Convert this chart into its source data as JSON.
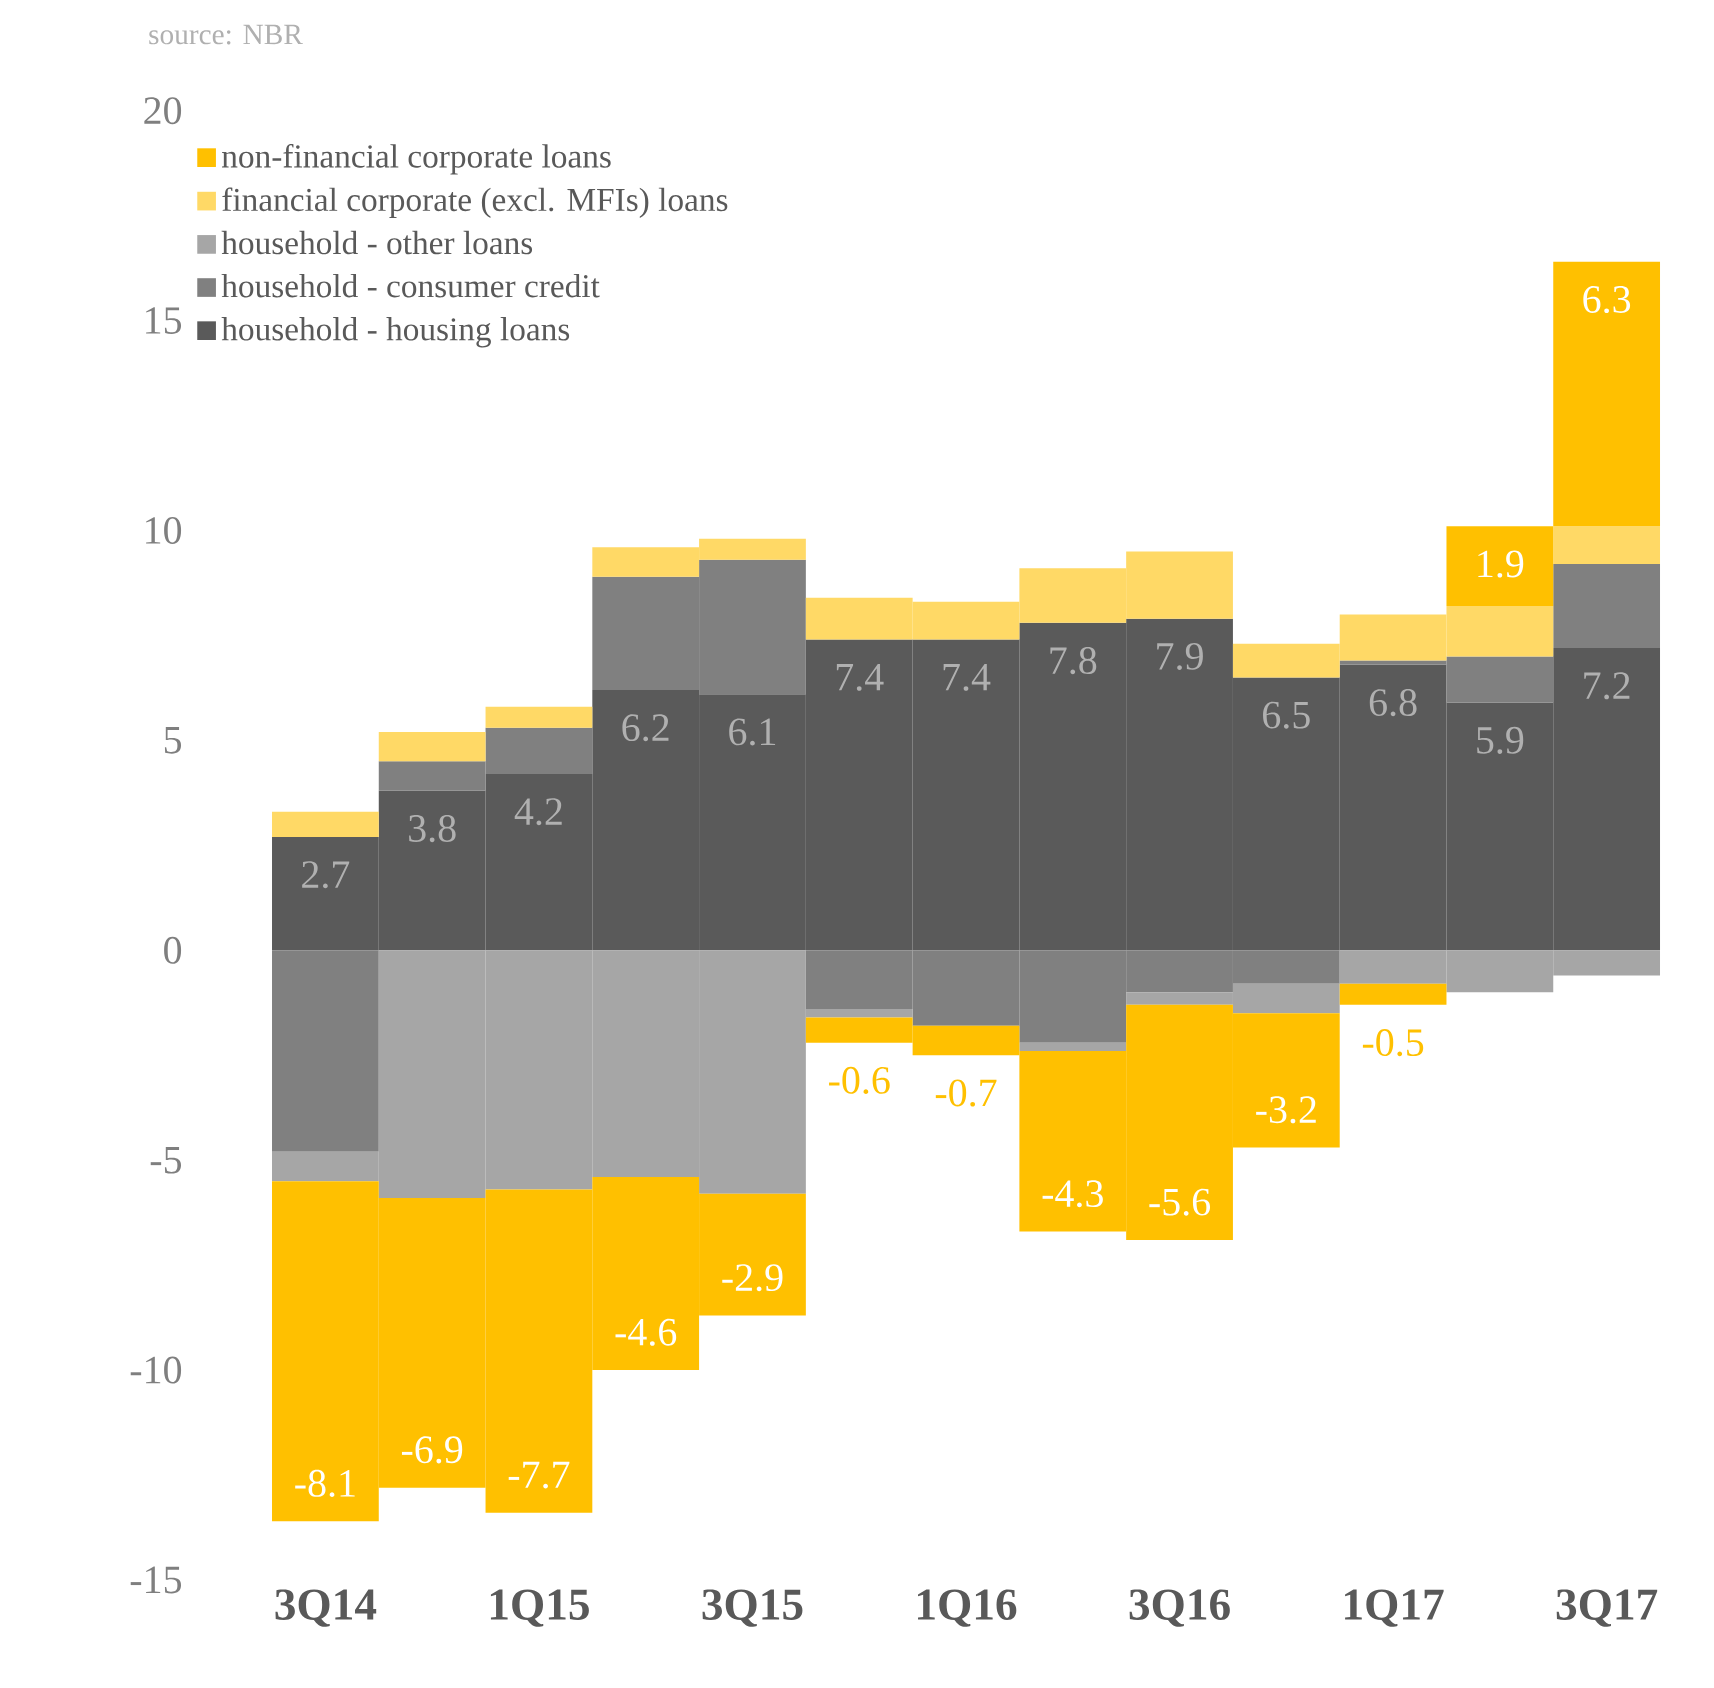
{
  "chart_data": {
    "type": "bar",
    "stacked": true,
    "categories": [
      "3Q14",
      null,
      "1Q15",
      null,
      "3Q15",
      null,
      "1Q16",
      null,
      "3Q16",
      null,
      "1Q17",
      null,
      "3Q17"
    ],
    "series": [
      {
        "name": "household - housing loans",
        "color": "#5a5a5a",
        "values": [
          2.7,
          3.8,
          4.2,
          6.2,
          6.1,
          7.4,
          7.4,
          7.8,
          7.9,
          6.5,
          6.8,
          5.9,
          7.2
        ],
        "value_labels": [
          "2.7",
          "3.8",
          "4.2",
          "6.2",
          "6.1",
          "7.4",
          "7.4",
          "7.8",
          "7.9",
          "6.5",
          "6.8",
          "5.9",
          "7.2"
        ]
      },
      {
        "name": "household - consumer credit",
        "color": "#808080",
        "values": [
          -4.8,
          0.7,
          1.1,
          2.7,
          3.2,
          -1.4,
          -1.8,
          -2.2,
          -1.0,
          -0.8,
          0.1,
          1.1,
          2.0
        ]
      },
      {
        "name": "household - other loans",
        "color": "#a6a6a6",
        "values": [
          -0.7,
          -5.9,
          -5.7,
          -5.4,
          -5.8,
          -0.2,
          0,
          -0.2,
          -0.3,
          -0.7,
          -0.8,
          -1.0,
          -0.6
        ]
      },
      {
        "name": "financial corporate (excl. MFIs) loans",
        "color": "#ffd966",
        "values": [
          0.6,
          0.7,
          0.5,
          0.7,
          0.5,
          1.0,
          0.9,
          1.3,
          1.6,
          0.8,
          1.1,
          1.2,
          0.9
        ]
      },
      {
        "name": "non-financial corporate loans",
        "color": "#ffc000",
        "values": [
          -8.1,
          -6.9,
          -7.7,
          -4.6,
          -2.9,
          -0.6,
          -0.7,
          -4.3,
          -5.6,
          -3.2,
          -0.5,
          1.9,
          6.3
        ],
        "value_labels": [
          "-8.1",
          "-6.9",
          "-7.7",
          "-4.6",
          "-2.9",
          "-0.6",
          "-0.7",
          "-4.3",
          "-5.6",
          "-3.2",
          "-0.5",
          "1.9",
          "6.3"
        ]
      }
    ],
    "ylim": [
      -15,
      20
    ],
    "yticks": [
      -15,
      -10,
      -5,
      0,
      5,
      10,
      15,
      20
    ],
    "legend": "top left",
    "annotations": [
      "source: NBR"
    ]
  }
}
